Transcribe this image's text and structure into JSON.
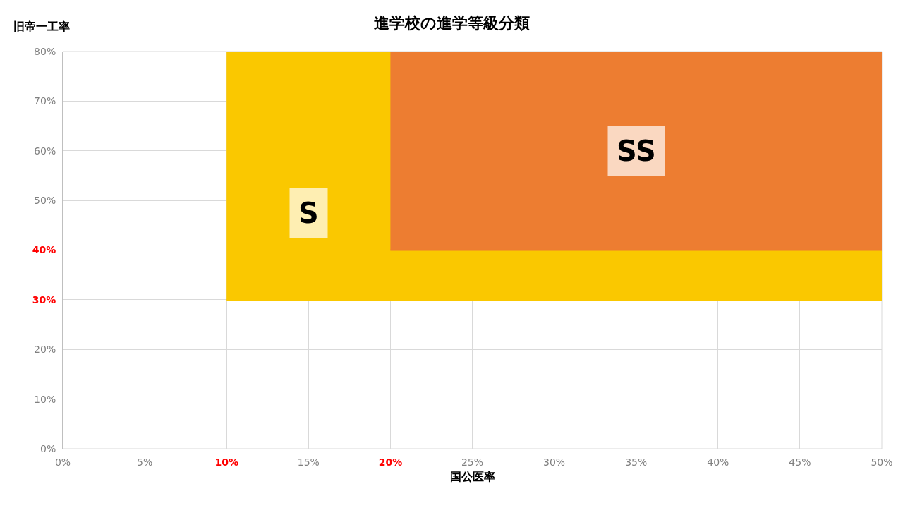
{
  "chart_data": {
    "type": "line",
    "title": "進学校の進学等級分類",
    "xlabel": "国公医率",
    "ylabel": "旧帝一工率",
    "series": [
      {
        "name": "S",
        "color": "#fac800",
        "x": [
          10,
          50
        ],
        "values": [
          30,
          30
        ],
        "lower": [
          30,
          30
        ],
        "upper": [
          80,
          80
        ]
      },
      {
        "name": "SS",
        "color": "#ed7d31",
        "x": [
          20,
          50
        ],
        "values": [
          40,
          40
        ],
        "lower": [
          40,
          40
        ],
        "upper": [
          80,
          80
        ]
      }
    ],
    "xlim": [
      0,
      50
    ],
    "xticks": [
      {
        "value": 0,
        "label": "0%"
      },
      {
        "value": 5,
        "label": "5%"
      },
      {
        "value": 10,
        "label": "10%"
      },
      {
        "value": 15,
        "label": "15%"
      },
      {
        "value": 20,
        "label": "20%"
      },
      {
        "value": 25,
        "label": "25%"
      },
      {
        "value": 30,
        "label": "30%"
      },
      {
        "value": 35,
        "label": "35%"
      },
      {
        "value": 40,
        "label": "40%"
      },
      {
        "value": 45,
        "label": "45%"
      },
      {
        "value": 50,
        "label": "50%"
      }
    ],
    "ylim": [
      0,
      80
    ],
    "yticks": [
      {
        "value": 0,
        "label": "0%"
      },
      {
        "value": 10,
        "label": "10%"
      },
      {
        "value": 20,
        "label": "20%"
      },
      {
        "value": 30,
        "label": "30%"
      },
      {
        "value": 40,
        "label": "40%"
      },
      {
        "value": 50,
        "label": "50%"
      },
      {
        "value": 60,
        "label": "60%"
      },
      {
        "value": 70,
        "label": "70%"
      },
      {
        "value": 80,
        "label": "80%"
      }
    ],
    "grid": true,
    "legend": false
  }
}
